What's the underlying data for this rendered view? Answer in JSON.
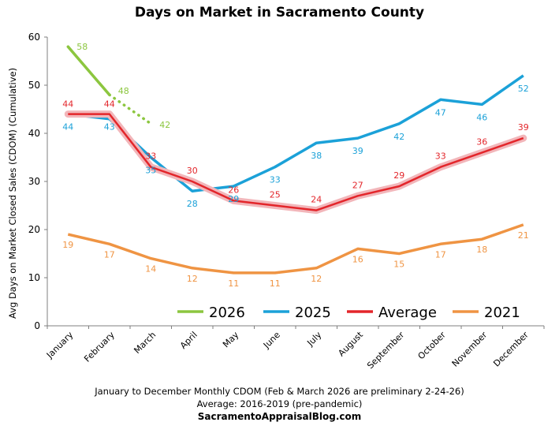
{
  "chart_data": {
    "type": "line",
    "title": "Days on Market in Sacramento County",
    "ylabel": "Avg Days on Market Closed Sales (CDOM) (Cumulative)",
    "xlabel": "",
    "ylim": [
      0,
      60
    ],
    "yticks": [
      "0",
      "10",
      "20",
      "30",
      "40",
      "50",
      "60"
    ],
    "grid": false,
    "legend_position": "bottom-inside",
    "categories": [
      "January",
      "February",
      "March",
      "April",
      "May",
      "June",
      "July",
      "August",
      "September",
      "October",
      "November",
      "December"
    ],
    "series": [
      {
        "name": "2026",
        "color": "#8cc63f",
        "values": [
          58,
          48,
          null,
          null,
          null,
          null,
          null,
          null,
          null,
          null,
          null,
          null
        ],
        "preliminary_values": [
          null,
          48,
          42,
          null,
          null,
          null,
          null,
          null,
          null,
          null,
          null,
          null
        ]
      },
      {
        "name": "2025",
        "color": "#1ba1d8",
        "values": [
          44,
          43,
          35,
          28,
          29,
          33,
          38,
          39,
          42,
          47,
          46,
          52
        ]
      },
      {
        "name": "Average",
        "color": "#e3262b",
        "values": [
          44,
          44,
          33,
          30,
          26,
          25,
          24,
          27,
          29,
          33,
          36,
          39
        ]
      },
      {
        "name": "2021",
        "color": "#ef9443",
        "values": [
          19,
          17,
          14,
          12,
          11,
          11,
          12,
          16,
          15,
          17,
          18,
          21
        ]
      }
    ]
  },
  "footer": {
    "line1": "January to December Monthly CDOM (Feb & March 2026 are preliminary  2-24-26)",
    "line2": "Average: 2016-2019 (pre-pandemic)",
    "line3": "SacramentoAppraisalBlog.com"
  }
}
